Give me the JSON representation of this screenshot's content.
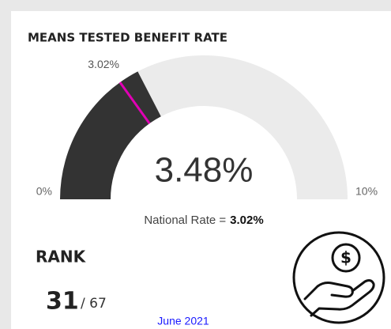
{
  "chart_data": {
    "type": "gauge",
    "title": "MEANS TESTED BENEFIT RATE",
    "values": [
      3.48
    ],
    "value_labels": [
      "3.48%"
    ],
    "color": "#333333",
    "track_color": "#ebebeb",
    "ylim": [
      0,
      10
    ],
    "yticks": [
      {
        "value": 0,
        "label": "0%"
      },
      {
        "value": 10,
        "label": "10%"
      }
    ],
    "target": 3.02,
    "target_label": "3.02%",
    "target_color": "#e000b4",
    "target_caption": "National Rate =",
    "rank_title": "RANK",
    "rank": 31,
    "rank_of": "/ 67",
    "date": "June 2021"
  }
}
